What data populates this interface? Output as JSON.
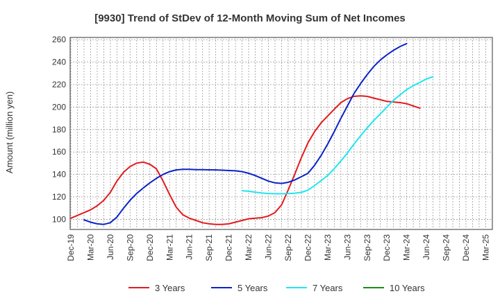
{
  "chart_data": {
    "type": "line",
    "title": "[9930]  Trend of StDev of 12-Month Moving Sum of Net Incomes",
    "xlabel": "",
    "ylabel": "Amount (million yen)",
    "x_categories": [
      "Dec-19",
      "Mar-20",
      "Jun-20",
      "Sep-20",
      "Dec-20",
      "Mar-21",
      "Jun-21",
      "Sep-21",
      "Dec-21",
      "Mar-22",
      "Jun-22",
      "Sep-22",
      "Dec-22",
      "Mar-23",
      "Jun-23",
      "Sep-23",
      "Dec-23",
      "Mar-24",
      "Jun-24",
      "Sep-24",
      "Dec-24",
      "Mar-25"
    ],
    "ylim": [
      91,
      262
    ],
    "yticks": [
      100,
      120,
      140,
      160,
      180,
      200,
      220,
      240,
      260
    ],
    "grid": true,
    "legend_position": "bottom",
    "series": [
      {
        "name": "3 Years",
        "color": "#e31a1c",
        "points": [
          [
            0,
            101
          ],
          [
            0.33,
            103.5
          ],
          [
            0.67,
            106
          ],
          [
            1,
            108.5
          ],
          [
            1.33,
            112
          ],
          [
            1.67,
            117
          ],
          [
            2,
            124
          ],
          [
            2.33,
            134
          ],
          [
            2.67,
            142
          ],
          [
            3,
            147
          ],
          [
            3.33,
            150
          ],
          [
            3.67,
            151
          ],
          [
            4,
            149
          ],
          [
            4.33,
            145
          ],
          [
            4.67,
            134
          ],
          [
            5,
            122
          ],
          [
            5.33,
            111
          ],
          [
            5.67,
            104
          ],
          [
            6,
            101
          ],
          [
            6.33,
            99
          ],
          [
            6.67,
            97
          ],
          [
            7,
            96
          ],
          [
            7.33,
            95.5
          ],
          [
            7.67,
            95.5
          ],
          [
            8,
            96
          ],
          [
            8.33,
            97.5
          ],
          [
            8.67,
            99
          ],
          [
            9,
            100.5
          ],
          [
            9.33,
            101
          ],
          [
            9.67,
            101.5
          ],
          [
            10,
            103
          ],
          [
            10.33,
            106
          ],
          [
            10.67,
            113
          ],
          [
            11,
            126
          ],
          [
            11.33,
            140
          ],
          [
            11.67,
            155
          ],
          [
            12,
            168
          ],
          [
            12.33,
            178
          ],
          [
            12.67,
            186
          ],
          [
            13,
            192
          ],
          [
            13.33,
            198
          ],
          [
            13.67,
            204
          ],
          [
            14,
            207.5
          ],
          [
            14.33,
            209.5
          ],
          [
            14.67,
            210
          ],
          [
            15,
            209.5
          ],
          [
            15.33,
            208
          ],
          [
            15.67,
            206.5
          ],
          [
            16,
            205
          ],
          [
            16.33,
            204.5
          ],
          [
            16.67,
            204
          ],
          [
            17,
            203
          ],
          [
            17.33,
            201
          ],
          [
            17.67,
            199
          ]
        ]
      },
      {
        "name": "5 Years",
        "color": "#0a22c8",
        "points": [
          [
            0.67,
            99.5
          ],
          [
            1,
            97.5
          ],
          [
            1.33,
            96
          ],
          [
            1.67,
            95.5
          ],
          [
            2,
            97
          ],
          [
            2.33,
            102
          ],
          [
            2.67,
            110
          ],
          [
            3,
            117
          ],
          [
            3.33,
            123
          ],
          [
            3.67,
            128
          ],
          [
            4,
            132.5
          ],
          [
            4.33,
            136.5
          ],
          [
            4.67,
            140
          ],
          [
            5,
            142.5
          ],
          [
            5.33,
            144
          ],
          [
            5.67,
            144.5
          ],
          [
            6,
            144.5
          ],
          [
            6.33,
            144.3
          ],
          [
            6.67,
            144.2
          ],
          [
            7,
            144.1
          ],
          [
            7.33,
            144
          ],
          [
            7.67,
            143.8
          ],
          [
            8,
            143.5
          ],
          [
            8.33,
            143.2
          ],
          [
            8.67,
            142.5
          ],
          [
            9,
            141
          ],
          [
            9.33,
            139
          ],
          [
            9.67,
            136.5
          ],
          [
            10,
            134
          ],
          [
            10.33,
            132.5
          ],
          [
            10.67,
            132
          ],
          [
            11,
            133
          ],
          [
            11.33,
            135
          ],
          [
            11.67,
            138
          ],
          [
            12,
            141
          ],
          [
            12.33,
            148
          ],
          [
            12.67,
            157
          ],
          [
            13,
            167
          ],
          [
            13.33,
            178
          ],
          [
            13.67,
            190
          ],
          [
            14,
            201
          ],
          [
            14.33,
            212
          ],
          [
            14.67,
            221
          ],
          [
            15,
            229
          ],
          [
            15.33,
            236
          ],
          [
            15.67,
            242
          ],
          [
            16,
            246.5
          ],
          [
            16.33,
            250.5
          ],
          [
            16.67,
            254
          ],
          [
            17,
            256.5
          ]
        ]
      },
      {
        "name": "7 Years",
        "color": "#1ee6f0",
        "points": [
          [
            8.67,
            125.5
          ],
          [
            9,
            125
          ],
          [
            9.33,
            124.2
          ],
          [
            9.67,
            123.5
          ],
          [
            10,
            123
          ],
          [
            10.33,
            122.8
          ],
          [
            10.67,
            122.8
          ],
          [
            11,
            123
          ],
          [
            11.33,
            123.3
          ],
          [
            11.67,
            124
          ],
          [
            12,
            126
          ],
          [
            12.33,
            130
          ],
          [
            12.67,
            134.5
          ],
          [
            13,
            139
          ],
          [
            13.33,
            145
          ],
          [
            13.67,
            152
          ],
          [
            14,
            159
          ],
          [
            14.33,
            167
          ],
          [
            14.67,
            174.5
          ],
          [
            15,
            181.5
          ],
          [
            15.33,
            188
          ],
          [
            15.67,
            194
          ],
          [
            16,
            200
          ],
          [
            16.33,
            206
          ],
          [
            16.67,
            211
          ],
          [
            17,
            215.5
          ],
          [
            17.33,
            219
          ],
          [
            17.67,
            222
          ],
          [
            18,
            225
          ],
          [
            18.33,
            227
          ]
        ]
      },
      {
        "name": "10 Years",
        "color": "#1a8a1a",
        "points": []
      }
    ]
  }
}
